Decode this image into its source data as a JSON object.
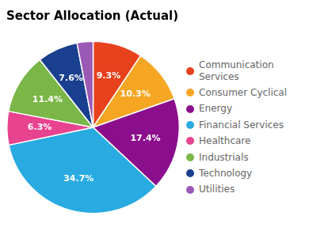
{
  "chart_data": {
    "type": "pie",
    "title": "Sector Allocation (Actual)",
    "categories": [
      "Communication\nServices",
      "Consumer Cyclical",
      "Energy",
      "Financial Services",
      "Healthcare",
      "Industrials",
      "Technology",
      "Utilities"
    ],
    "values": [
      9.3,
      10.3,
      17.4,
      34.7,
      6.3,
      11.4,
      7.6,
      3.0
    ],
    "colors": [
      "#e8411e",
      "#f5a623",
      "#8b0f8c",
      "#29abe2",
      "#e8438e",
      "#7ab648",
      "#1a3f8f",
      "#9b59b6"
    ],
    "value_labels": [
      "9.3%",
      "10.3%",
      "17.4%",
      "34.7%",
      "6.3%",
      "11.4%",
      "7.6%",
      null
    ],
    "data_labels": true,
    "legend": "right"
  }
}
